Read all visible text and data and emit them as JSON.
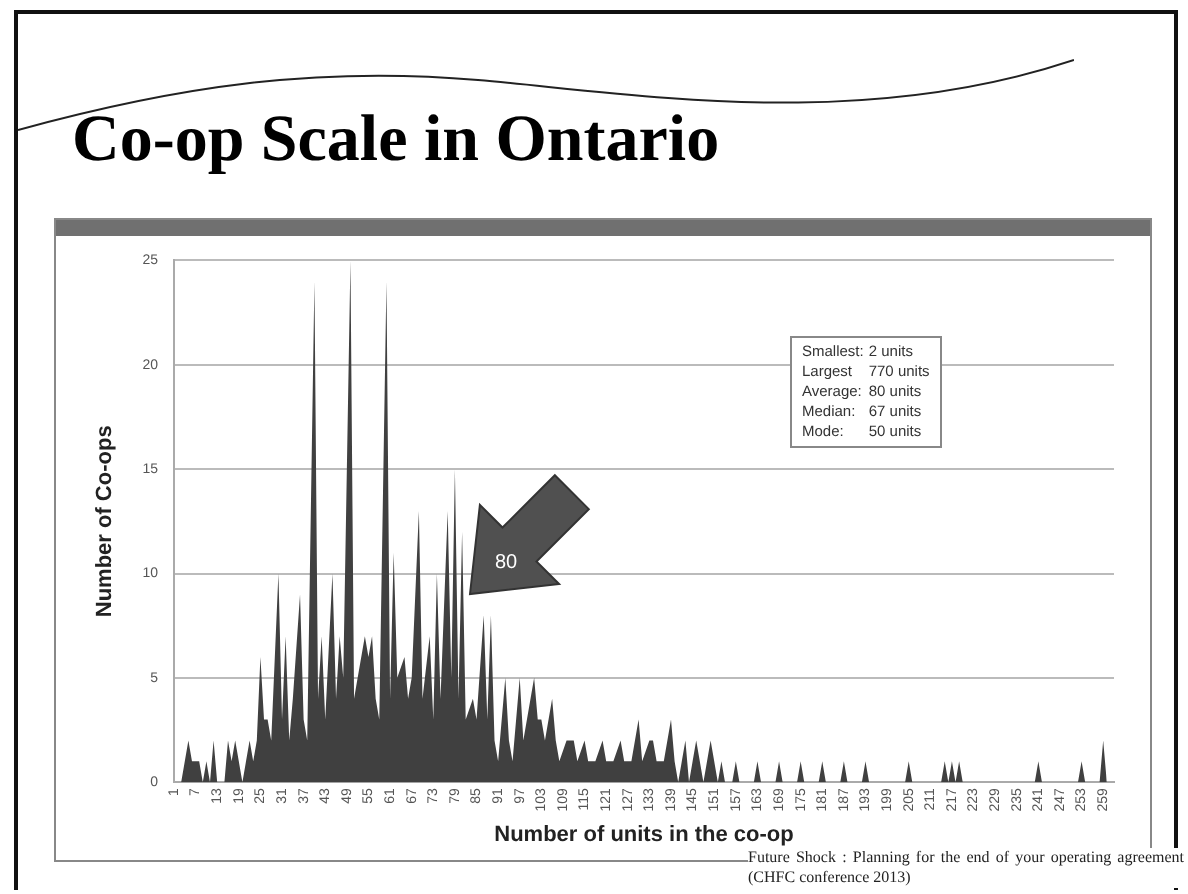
{
  "chart_data": {
    "type": "area",
    "title": "Co-op Scale in Ontario",
    "xlabel": "Number of units in the co-op",
    "ylabel": "Number of Co-ops",
    "x": [
      1,
      3,
      5,
      6,
      8,
      9,
      10,
      11,
      12,
      13,
      15,
      16,
      17,
      18,
      19,
      20,
      21,
      22,
      23,
      24,
      25,
      26,
      27,
      28,
      30,
      31,
      32,
      33,
      34,
      36,
      37,
      38,
      40,
      41,
      42,
      43,
      45,
      46,
      47,
      48,
      50,
      51,
      52,
      54,
      55,
      56,
      57,
      58,
      60,
      61,
      62,
      63,
      65,
      66,
      67,
      69,
      70,
      72,
      73,
      74,
      75,
      77,
      78,
      79,
      80,
      81,
      82,
      84,
      85,
      87,
      88,
      89,
      90,
      91,
      93,
      94,
      95,
      97,
      98,
      99,
      101,
      102,
      103,
      104,
      106,
      107,
      108,
      110,
      112,
      113,
      115,
      116,
      118,
      120,
      121,
      123,
      125,
      126,
      128,
      130,
      131,
      133,
      134,
      135,
      137,
      139,
      140,
      141,
      142,
      143,
      144,
      145,
      146,
      147,
      148,
      150,
      151,
      152,
      153,
      154,
      156,
      157,
      158,
      162,
      163,
      164,
      168,
      169,
      170,
      174,
      175,
      176,
      180,
      181,
      182,
      186,
      187,
      188,
      192,
      193,
      194,
      204,
      205,
      206,
      214,
      215,
      216,
      217,
      218,
      219,
      220,
      240,
      241,
      242,
      252,
      253,
      254,
      258,
      259,
      260
    ],
    "values": [
      0,
      0,
      2,
      1,
      1,
      0,
      1,
      0,
      2,
      0,
      0,
      2,
      1,
      2,
      1,
      0,
      1,
      2,
      1,
      2,
      6,
      3,
      3,
      2,
      10,
      3,
      7,
      2,
      4,
      9,
      3,
      2,
      24,
      4,
      7,
      3,
      10,
      4,
      7,
      5,
      25,
      4,
      5,
      7,
      6,
      7,
      4,
      3,
      24,
      4,
      11,
      5,
      6,
      4,
      5,
      13,
      4,
      7,
      3,
      10,
      4,
      13,
      5,
      15,
      4,
      12,
      3,
      4,
      3,
      8,
      3,
      8,
      2,
      1,
      5,
      2,
      1,
      5,
      2,
      3,
      5,
      3,
      3,
      2,
      4,
      2,
      1,
      2,
      2,
      1,
      2,
      1,
      1,
      2,
      1,
      1,
      2,
      1,
      1,
      3,
      1,
      2,
      2,
      1,
      1,
      3,
      1,
      0,
      1,
      2,
      0,
      1,
      2,
      1,
      0,
      2,
      1,
      0,
      1,
      0,
      0,
      1,
      0,
      0,
      1,
      0,
      0,
      1,
      0,
      0,
      1,
      0,
      0,
      1,
      0,
      0,
      1,
      0,
      0,
      1,
      0,
      0,
      1,
      0,
      0,
      1,
      0,
      1,
      0,
      1,
      0,
      0,
      1,
      0,
      0,
      1,
      0,
      0,
      2,
      0
    ],
    "color": "#404040",
    "xlim": [
      1,
      262
    ],
    "xticks": [
      1,
      7,
      13,
      19,
      25,
      31,
      37,
      43,
      49,
      55,
      61,
      67,
      73,
      79,
      85,
      91,
      97,
      103,
      109,
      115,
      121,
      127,
      133,
      139,
      145,
      151,
      157,
      163,
      169,
      175,
      181,
      187,
      193,
      199,
      205,
      211,
      217,
      223,
      229,
      235,
      241,
      247,
      253,
      259
    ],
    "ylim": [
      0,
      25
    ],
    "yticks": [
      0,
      5,
      10,
      15,
      20,
      25
    ],
    "grid": "y",
    "legend": false,
    "annotations": [
      "Smallest:\t2 units",
      "Largest\t770 units",
      "Average:\t80 units",
      "Median:\t67 units",
      "Mode:\t50 units",
      {
        "text": "80",
        "x": 83,
        "y": 9
      },
      "Future Shock : Planning for the end of your operating agreement (CHFC conference 2013)"
    ]
  }
}
